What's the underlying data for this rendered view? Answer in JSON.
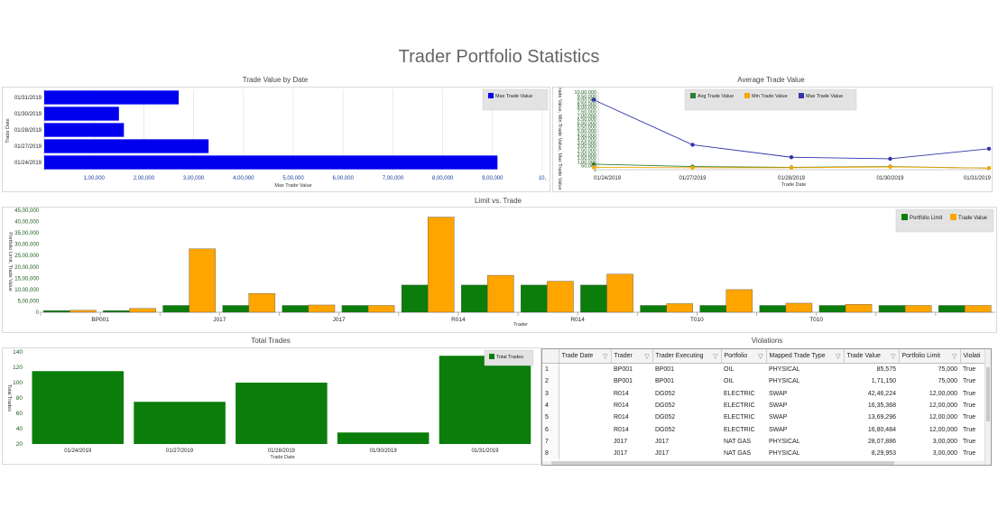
{
  "page_title": "Trader Portfolio Statistics",
  "charts": {
    "trade_value_by_date": {
      "title": "Trade Value by Date",
      "ylabel": "Trade Date",
      "xlabel": "Max Trade Value",
      "legend": "Max Trade Value",
      "tick_labels": [
        "1,00,000",
        "2,00,000",
        "3,00,000",
        "4,00,000",
        "5,00,000",
        "6,00,000",
        "7,00,000",
        "8,00,000",
        "9,00,000",
        "10,"
      ]
    },
    "average_trade_value": {
      "title": "Average Trade Value",
      "ylabel": "Avg Trade Value, Min Trade Value, Max Trade Value",
      "xlabel": "Trade Date",
      "legend": [
        "Avg Trade Value",
        "Min Trade Value",
        "Max Trade Value"
      ],
      "y_tick_labels": [
        "0",
        "50,000",
        "1,00,000",
        "1,50,000",
        "2,00,000",
        "2,50,000",
        "3,00,000",
        "3,50,000",
        "4,00,000",
        "4,50,000",
        "5,00,000",
        "5,50,000",
        "6,00,000",
        "6,50,000",
        "7,00,000",
        "7,50,000",
        "8,00,000",
        "8,50,000",
        "9,00,000",
        "9,50,000",
        "10,00,000"
      ],
      "x_tick_labels": [
        "01/24/2019",
        "01/27/2019",
        "01/28/2019",
        "01/30/2019",
        "01/31/2019"
      ]
    },
    "limit_vs_trade": {
      "title": "Limit vs. Trade",
      "ylabel": "Portfolio Limit, Trade Value",
      "xlabel": "Trader",
      "legend": [
        "Portfolio Limit",
        "Trade Value"
      ],
      "y_tick_labels": [
        "0",
        "5,00,000",
        "10,00,000",
        "15,00,000",
        "20,00,000",
        "25,00,000",
        "30,00,000",
        "35,00,000",
        "40,00,000",
        "45,00,000"
      ],
      "x_tick_labels": [
        "BP001",
        "J017",
        "J017",
        "R014",
        "R014",
        "T010",
        "T010"
      ]
    },
    "total_trades": {
      "title": "Total Trades",
      "ylabel": "Total Trades",
      "xlabel": "Trade Date",
      "legend": "Total Trades",
      "y_tick_labels": [
        "20",
        "40",
        "60",
        "80",
        "100",
        "120",
        "140"
      ],
      "x_tick_labels": [
        "01/24/2019",
        "01/27/2019",
        "01/28/2019",
        "01/30/2019",
        "01/31/2019"
      ]
    }
  },
  "chart_data": [
    {
      "type": "bar",
      "orientation": "horizontal",
      "title": "Trade Value by Date",
      "xlabel": "Max Trade Value",
      "ylabel": "Trade Date",
      "categories": [
        "01/31/2019",
        "01/30/2019",
        "01/28/2019",
        "01/27/2019",
        "01/24/2019"
      ],
      "series": [
        {
          "name": "Max Trade Value",
          "values": [
            270000,
            150000,
            160000,
            330000,
            910000
          ]
        }
      ],
      "xlim": [
        0,
        1000000
      ],
      "colors": [
        "#0000ee"
      ],
      "legend": "top-right",
      "grid": true
    },
    {
      "type": "line",
      "title": "Average Trade Value",
      "xlabel": "Trade Date",
      "ylabel": "Avg Trade Value, Min Trade Value, Max Trade Value",
      "x": [
        "01/24/2019",
        "01/27/2019",
        "01/28/2019",
        "01/30/2019",
        "01/31/2019"
      ],
      "series": [
        {
          "name": "Avg Trade Value",
          "values": [
            70000,
            40000,
            30000,
            40000,
            20000
          ]
        },
        {
          "name": "Min Trade Value",
          "values": [
            30000,
            25000,
            25000,
            35000,
            20000
          ]
        },
        {
          "name": "Max Trade Value",
          "values": [
            900000,
            320000,
            160000,
            140000,
            270000
          ]
        }
      ],
      "ylim": [
        0,
        1000000
      ],
      "colors": [
        "#2e7d32",
        "#f5a800",
        "#3333aa"
      ],
      "legend": "top-center",
      "grid": false
    },
    {
      "type": "bar",
      "title": "Limit vs. Trade",
      "xlabel": "Trader",
      "ylabel": "Portfolio Limit, Trade Value",
      "categories": [
        "BP001",
        "BP001",
        "J017",
        "J017",
        "J017",
        "J017",
        "R014",
        "R014",
        "R014",
        "R014",
        "R014",
        "R014",
        "T010",
        "T010",
        "T010",
        "T010"
      ],
      "series": [
        {
          "name": "Portfolio Limit",
          "values": [
            75000,
            75000,
            300000,
            300000,
            300000,
            300000,
            1200000,
            1200000,
            1200000,
            1200000,
            300000,
            300000,
            300000,
            300000,
            300000,
            300000
          ]
        },
        {
          "name": "Trade Value",
          "values": [
            85575,
            171150,
            2800000,
            830000,
            320000,
            300000,
            4200000,
            1630000,
            1370000,
            1680000,
            380000,
            1000000,
            400000,
            350000,
            300000,
            300000
          ]
        }
      ],
      "ylim": [
        0,
        4500000
      ],
      "colors": [
        "#0a7d0a",
        "#ffa500"
      ],
      "legend": "top-right",
      "grid": false
    },
    {
      "type": "bar",
      "title": "Total Trades",
      "xlabel": "Trade Date",
      "ylabel": "Total Trades",
      "categories": [
        "01/24/2019",
        "01/27/2019",
        "01/28/2019",
        "01/30/2019",
        "01/31/2019"
      ],
      "series": [
        {
          "name": "Total Trades",
          "values": [
            115,
            75,
            100,
            35,
            135
          ]
        }
      ],
      "ylim": [
        20,
        140
      ],
      "colors": [
        "#0a7d0a"
      ],
      "legend": "top-right",
      "grid": false
    }
  ],
  "violations": {
    "title": "Violations",
    "columns": [
      "",
      "Trade Date",
      "Trader",
      "Trader Executing",
      "Portfolio",
      "Mapped Trade Type",
      "Trade Value",
      "Portfolio Limit",
      "Violati"
    ],
    "rows": [
      [
        "1",
        "",
        "BP001",
        "BP001",
        "OIL",
        "PHYSICAL",
        "85,575",
        "75,000",
        "True"
      ],
      [
        "2",
        "",
        "BP001",
        "BP001",
        "OIL",
        "PHYSICAL",
        "1,71,150",
        "75,000",
        "True"
      ],
      [
        "3",
        "",
        "R014",
        "DG052",
        "ELECTRIC",
        "SWAP",
        "42,46,224",
        "12,00,000",
        "True"
      ],
      [
        "4",
        "",
        "R014",
        "DG052",
        "ELECTRIC",
        "SWAP",
        "16,35,368",
        "12,00,000",
        "True"
      ],
      [
        "5",
        "",
        "R014",
        "DG052",
        "ELECTRIC",
        "SWAP",
        "13,69,296",
        "12,00,000",
        "True"
      ],
      [
        "6",
        "",
        "R014",
        "DG052",
        "ELECTRIC",
        "SWAP",
        "16,80,484",
        "12,00,000",
        "True"
      ],
      [
        "7",
        "",
        "J017",
        "J017",
        "NAT GAS",
        "PHYSICAL",
        "28,07,886",
        "3,00,000",
        "True"
      ],
      [
        "8",
        "",
        "J017",
        "J017",
        "NAT GAS",
        "PHYSICAL",
        "8,29,953",
        "3,00,000",
        "True"
      ]
    ]
  }
}
